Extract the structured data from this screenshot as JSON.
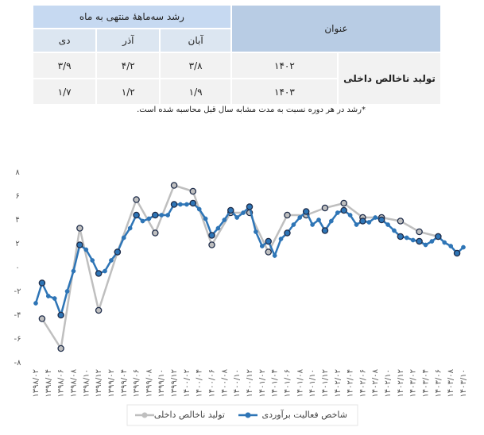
{
  "table": {
    "title": "عنوان",
    "group": "رشد سه‌ماههٔ منتهی به ماه",
    "months": [
      "آبان",
      "آذر",
      "دی"
    ],
    "row_label": "تولید ناخالص داخلی",
    "rows": [
      {
        "year": "۱۴۰۲",
        "values": [
          "۳/۸",
          "۴/۲",
          "۳/۹"
        ]
      },
      {
        "year": "۱۴۰۳",
        "values": [
          "۱/۹",
          "۱/۲",
          "۱/۷"
        ]
      }
    ],
    "note": "*رشد در هر دوره نسبت به مدت مشابه سال قبل محاسبه شده است."
  },
  "chart_data": {
    "type": "line",
    "categories": [
      "۱۳۹۸/۰۲",
      null,
      "۱۳۹۸/۰۴",
      null,
      "۱۳۹۸/۰۶",
      null,
      "۱۳۹۸/۰۸",
      null,
      "۱۳۹۸/۱۰",
      null,
      "۱۳۹۸/۱۲",
      null,
      "۱۳۹۹/۰۲",
      null,
      "۱۳۹۹/۰۴",
      null,
      "۱۳۹۹/۰۶",
      null,
      "۱۳۹۹/۰۸",
      null,
      "۱۳۹۹/۱۰",
      null,
      "۱۳۹۹/۱۲",
      null,
      "۱۴۰۰/۰۲",
      null,
      "۱۴۰۰/۰۴",
      null,
      "۱۴۰۰/۰۶",
      null,
      "۱۴۰۰/۰۸",
      null,
      "۱۴۰۰/۱۰",
      null,
      "۱۴۰۰/۱۲",
      null,
      "۱۴۰۱/۰۲",
      null,
      "۱۴۰۱/۰۴",
      null,
      "۱۴۰۱/۰۶",
      null,
      "۱۴۰۱/۰۸",
      null,
      "۱۴۰۱/۱۰",
      null,
      "۱۴۰۱/۱۲",
      null,
      "۱۴۰۲/۰۲",
      null,
      "۱۴۰۲/۰۴",
      null,
      "۱۴۰۲/۰۶",
      null,
      "۱۴۰۲/۰۸",
      null,
      "۱۴۰۲/۱۰",
      null,
      "۱۴۰۲/۱۲",
      null,
      "۱۴۰۳/۰۲",
      null,
      "۱۴۰۳/۰۴",
      null,
      "۱۴۰۳/۰۶",
      null,
      "۱۴۰۳/۰۸",
      null,
      "۱۴۰۳/۱۰"
    ],
    "series": [
      {
        "name": "تولید ناخالص داخلی",
        "color": "#bfbfbf",
        "values": [
          null,
          -4.3,
          null,
          null,
          -6.8,
          null,
          null,
          3.3,
          null,
          null,
          -3.6,
          null,
          null,
          1.3,
          null,
          null,
          5.7,
          null,
          null,
          2.9,
          null,
          null,
          6.9,
          null,
          null,
          6.4,
          null,
          null,
          1.9,
          null,
          null,
          4.6,
          null,
          null,
          4.6,
          null,
          null,
          1.3,
          null,
          null,
          4.4,
          null,
          null,
          4.4,
          null,
          null,
          5.0,
          null,
          null,
          5.4,
          null,
          null,
          4.2,
          null,
          null,
          4.2,
          null,
          null,
          3.9,
          null,
          null,
          3.0,
          null,
          null,
          2.6,
          null,
          null,
          null,
          null
        ]
      },
      {
        "name": "شاخص فعالیت برآوردی",
        "color": "#2e75b6",
        "values": [
          -3.0,
          -1.3,
          -2.4,
          -2.6,
          -4.0,
          -2.0,
          -0.3,
          1.9,
          1.5,
          0.6,
          -0.5,
          -0.3,
          0.6,
          1.3,
          2.5,
          3.3,
          4.4,
          3.9,
          4.1,
          4.4,
          4.4,
          4.4,
          5.3,
          5.3,
          5.3,
          5.4,
          4.9,
          4.1,
          2.7,
          3.3,
          4.0,
          4.8,
          4.2,
          4.6,
          5.1,
          3.0,
          1.8,
          2.2,
          1.0,
          2.4,
          2.9,
          3.6,
          4.2,
          4.7,
          3.6,
          4.0,
          3.1,
          3.9,
          4.6,
          4.8,
          4.4,
          3.6,
          3.9,
          3.8,
          4.2,
          4.0,
          3.6,
          3.1,
          2.6,
          2.5,
          2.3,
          2.2,
          1.9,
          2.2,
          2.6,
          2.1,
          1.8,
          1.2,
          1.7
        ]
      }
    ],
    "ylim": [
      -8,
      8
    ],
    "yticks": [
      {
        "value": 8,
        "label": "۸"
      },
      {
        "value": 6,
        "label": "۶"
      },
      {
        "value": 4,
        "label": "۴"
      },
      {
        "value": 2,
        "label": "۲"
      },
      {
        "value": 0,
        "label": "۰"
      },
      {
        "value": -2,
        "label": "-۲"
      },
      {
        "value": -4,
        "label": "-۴"
      },
      {
        "value": -6,
        "label": "-۶"
      },
      {
        "value": -8,
        "label": "-۸"
      }
    ],
    "grid": false,
    "legend": "bottom"
  }
}
